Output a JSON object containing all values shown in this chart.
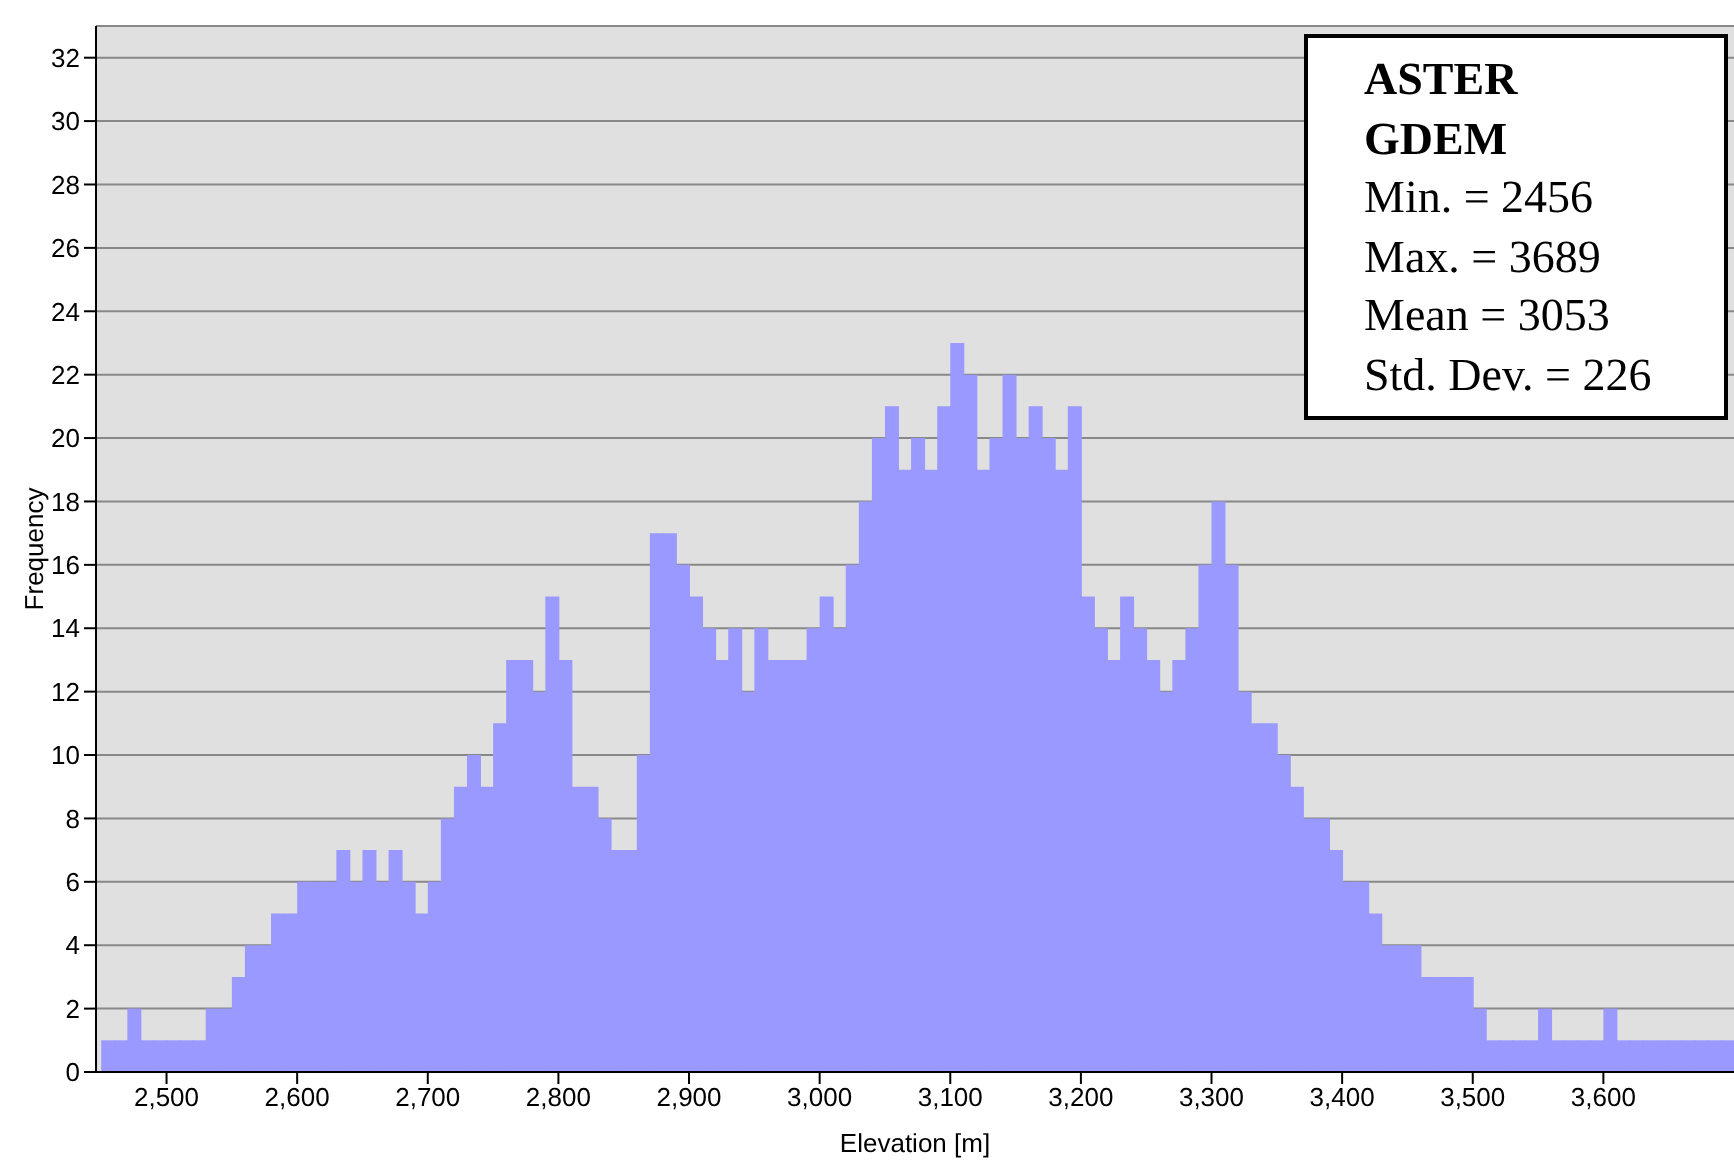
{
  "chart_data": {
    "type": "histogram",
    "xlabel": "Elevation [m]",
    "ylabel": "Frequency",
    "color": "#9999ff",
    "bins": [
      2450,
      2460,
      2470,
      2480,
      2490,
      2500,
      2510,
      2520,
      2530,
      2540,
      2550,
      2560,
      2570,
      2580,
      2590,
      2600,
      2610,
      2620,
      2630,
      2640,
      2650,
      2660,
      2670,
      2680,
      2690,
      2700,
      2710,
      2720,
      2730,
      2740,
      2750,
      2760,
      2770,
      2780,
      2790,
      2800,
      2810,
      2820,
      2830,
      2840,
      2850,
      2860,
      2870,
      2880,
      2890,
      2900,
      2910,
      2920,
      2930,
      2940,
      2950,
      2960,
      2970,
      2980,
      2990,
      3000,
      3010,
      3020,
      3030,
      3040,
      3050,
      3060,
      3070,
      3080,
      3090,
      3100,
      3110,
      3120,
      3130,
      3140,
      3150,
      3160,
      3170,
      3180,
      3190,
      3200,
      3210,
      3220,
      3230,
      3240,
      3250,
      3260,
      3270,
      3280,
      3290,
      3300,
      3310,
      3320,
      3330,
      3340,
      3350,
      3360,
      3370,
      3380,
      3390,
      3400,
      3410,
      3420,
      3430,
      3440,
      3450,
      3460,
      3470,
      3480,
      3490,
      3500,
      3510,
      3520,
      3530,
      3540,
      3550,
      3560,
      3570,
      3580,
      3590,
      3600,
      3610,
      3620,
      3630,
      3640,
      3650,
      3660,
      3670,
      3680,
      3690,
      3700
    ],
    "values": [
      1,
      1,
      2,
      1,
      1,
      1,
      1,
      1,
      2,
      2,
      3,
      4,
      4,
      5,
      5,
      6,
      6,
      6,
      7,
      6,
      7,
      6,
      7,
      6,
      5,
      6,
      8,
      9,
      10,
      9,
      11,
      13,
      13,
      12,
      15,
      13,
      9,
      9,
      8,
      7,
      7,
      10,
      17,
      17,
      16,
      15,
      14,
      13,
      14,
      12,
      14,
      13,
      13,
      13,
      14,
      15,
      14,
      16,
      18,
      20,
      21,
      19,
      20,
      19,
      21,
      23,
      22,
      19,
      20,
      22,
      20,
      21,
      20,
      19,
      21,
      15,
      14,
      13,
      15,
      14,
      13,
      12,
      13,
      14,
      16,
      18,
      16,
      12,
      11,
      11,
      10,
      9,
      8,
      8,
      7,
      6,
      6,
      5,
      4,
      4,
      4,
      3,
      3,
      3,
      3,
      2,
      1,
      1,
      1,
      1,
      2,
      1,
      1,
      1,
      1,
      2,
      1,
      1,
      1,
      1,
      1,
      1,
      1,
      1,
      1
    ],
    "xlim": [
      2446,
      3700
    ],
    "xticks": [
      {
        "value": 2500,
        "label": "2,500"
      },
      {
        "value": 2600,
        "label": "2,600"
      },
      {
        "value": 2700,
        "label": "2,700"
      },
      {
        "value": 2800,
        "label": "2,800"
      },
      {
        "value": 2900,
        "label": "2,900"
      },
      {
        "value": 3000,
        "label": "3,000"
      },
      {
        "value": 3100,
        "label": "3,100"
      },
      {
        "value": 3200,
        "label": "3,200"
      },
      {
        "value": 3300,
        "label": "3,300"
      },
      {
        "value": 3400,
        "label": "3,400"
      },
      {
        "value": 3500,
        "label": "3,500"
      },
      {
        "value": 3600,
        "label": "3,600"
      }
    ],
    "ylim": [
      0,
      33
    ],
    "yticks": [
      0,
      2,
      4,
      6,
      8,
      10,
      12,
      14,
      16,
      18,
      20,
      22,
      24,
      26,
      28,
      30,
      32
    ],
    "grid": "y",
    "annotations": [
      "ASTER GDEM",
      "Min. = 2456",
      "Max. = 3689",
      "Mean = 3053",
      "Std. Dev. = 226"
    ]
  }
}
